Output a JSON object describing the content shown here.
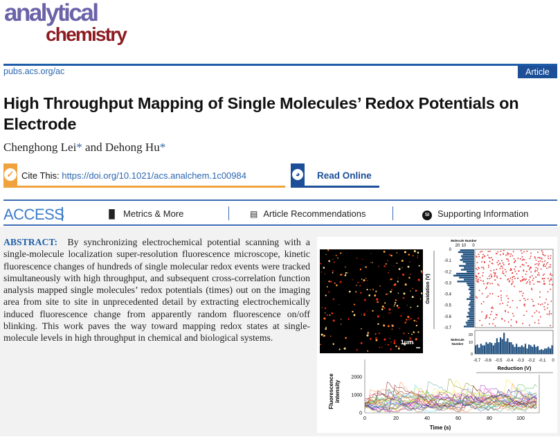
{
  "header": {
    "logo_line1": "analytical",
    "logo_line2": "chemistry",
    "journal_url": "pubs.acs.org/ac",
    "article_type": "Article"
  },
  "title": "High Throughput Mapping of Single Molecules’ Redox Potentials on Electrode",
  "authors": [
    {
      "name": "Chenghong Lei",
      "mark": "*"
    },
    {
      "name": "Dehong Hu",
      "mark": "*"
    }
  ],
  "authors_joiner": "and",
  "cite": {
    "label": "Cite This:",
    "doi": "https://doi.org/10.1021/acs.analchem.1c00984",
    "icon": "check-circle-icon"
  },
  "read_online": {
    "label": "Read Online",
    "icon": "globe-icon"
  },
  "access": {
    "label": "ACCESS",
    "tabs": [
      {
        "label": "Metrics & More",
        "icon": "bar-chart-icon"
      },
      {
        "label": "Article Recommendations",
        "icon": "newspaper-icon"
      },
      {
        "label": "Supporting Information",
        "icon": "si-icon",
        "icon_text": "SI"
      }
    ]
  },
  "abstract": {
    "label": "ABSTRACT:",
    "text": "By synchronizing electrochemical potential scanning with a single-molecule localization super-resolution fluorescence microscope, kinetic fluorescence changes of hundreds of single molecular redox events were tracked simultaneously with high throughput, and subsequent cross-correlation function analysis mapped single molecules’ redox potentials (times) out on the imaging area from site to site in unprecedented detail by extracting electrochemically induced fluo­rescence change from apparently random fluorescence on/off blinking. This work paves the way toward mapping redox states at single-molecule levels in high throughput in chemical and biological systems."
  },
  "figure": {
    "scale_bar": "1μm",
    "left_hist": {
      "title": "Molecule Number",
      "ticks": [
        "20",
        "10",
        "0"
      ],
      "ylabel": "Oxidation (V)",
      "yticks": [
        "0",
        "-0.1",
        "-0.2",
        "-0.3",
        "-0.4",
        "-0.5",
        "-0.6",
        "-0.7"
      ],
      "values": [
        15,
        17,
        12,
        14,
        13,
        15,
        12,
        9,
        16,
        11,
        14,
        8,
        19,
        22,
        16,
        11,
        18,
        8,
        7,
        5,
        6,
        4,
        5,
        4,
        5,
        8,
        4,
        5,
        6,
        4,
        6,
        5,
        7,
        6,
        8,
        5,
        7,
        9,
        8,
        11
      ]
    },
    "bottom_hist": {
      "ylabel": "Molecule Number",
      "yticks": [
        "20",
        "10",
        "0"
      ],
      "xticks": [
        "-0.7",
        "-0.6",
        "-0.5",
        "-0.4",
        "-0.3",
        "-0.2",
        "-0.1",
        "0"
      ],
      "xlabel": "Reduction (V)",
      "values": [
        11,
        12,
        8,
        13,
        11,
        11,
        15,
        13,
        15,
        14,
        11,
        14,
        20,
        15,
        21,
        19,
        27,
        16,
        20,
        15,
        15,
        12,
        9,
        13,
        9,
        9,
        11,
        9,
        13,
        7,
        12,
        11,
        9,
        12,
        9,
        10,
        5,
        6,
        5,
        7,
        7,
        9,
        7,
        11
      ]
    },
    "traces": {
      "ylabel": "Fluorescence intensity",
      "yticks": [
        "0",
        "1000",
        "2000"
      ],
      "xticks": [
        "0",
        "20",
        "40",
        "60",
        "80",
        "100"
      ],
      "xlabel": "Time (s)",
      "xlim": [
        0,
        112
      ],
      "ylim": [
        0,
        2800
      ]
    },
    "colors": {
      "hist": "#1f4f7f",
      "dots": "#e03030",
      "micrograph": "#000000"
    }
  }
}
